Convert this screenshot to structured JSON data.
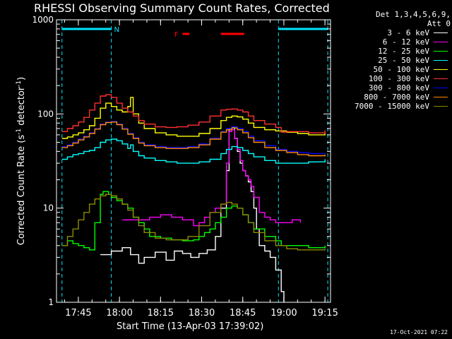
{
  "title": "RHESSI Observing Summary Count Rates, Corrected",
  "xlabel": "Start Time (13-Apr-03 17:39:02)",
  "timestamp": "17-Oct-2021 07:22",
  "legend_header": [
    "Det 1,3,4,5,6,9,",
    "Att 0"
  ],
  "flags": {
    "n_label": "N",
    "f_label": "F"
  },
  "colors": {
    "background": "#000000",
    "axes": "#ffffff",
    "night_bar": "#00e5ff",
    "flare_bar": "#ff0000"
  },
  "chart_data": {
    "type": "line",
    "title": "RHESSI Observing Summary Count Rates, Corrected",
    "xlabel": "Start Time (13-Apr-03 17:39:02)",
    "ylabel": "Corrected Count Rate (s⁻¹ detector⁻¹)",
    "ylabel_main": "Corrected Count Rate (s",
    "ylabel_sup1": "-1",
    "ylabel_mid": " detector",
    "ylabel_sup2": "-1",
    "ylabel_end": ")",
    "x_unit": "minutes after 17:39:02",
    "xlim": [
      -2,
      98
    ],
    "ylim": [
      1,
      1000
    ],
    "y_scale": "log",
    "grid": false,
    "legend_position": "right outside",
    "xticks": [
      {
        "label": "17:45",
        "x": 5.97
      },
      {
        "label": "18:00",
        "x": 20.97
      },
      {
        "label": "18:15",
        "x": 35.97
      },
      {
        "label": "18:30",
        "x": 50.97
      },
      {
        "label": "18:45",
        "x": 65.97
      },
      {
        "label": "19:00",
        "x": 80.97
      },
      {
        "label": "19:15",
        "x": 95.97
      }
    ],
    "yticks": [
      {
        "label": "1",
        "y": 1
      },
      {
        "label": "10",
        "y": 10
      },
      {
        "label": "100",
        "y": 100
      },
      {
        "label": "1000",
        "y": 1000
      }
    ],
    "night_intervals": [
      [
        0,
        18
      ],
      [
        79,
        97
      ]
    ],
    "flare_intervals": [
      [
        44,
        46.5
      ],
      [
        58,
        66.5
      ]
    ],
    "n_marker_x": 18.5,
    "f_marker_x": 41,
    "series": [
      {
        "name": "3 - 6 keV",
        "color": "#ffffff",
        "x": [
          0,
          5,
          10,
          14,
          18,
          22,
          25,
          28,
          30,
          34,
          38,
          41,
          44,
          47,
          50,
          53,
          56,
          58,
          60,
          61,
          62,
          63,
          64,
          65,
          66,
          67,
          68,
          69,
          70,
          71,
          72,
          74,
          76,
          78,
          80,
          81
        ],
        "y": [
          null,
          null,
          null,
          3.2,
          3.5,
          3.8,
          3.2,
          2.6,
          3.0,
          3.4,
          2.8,
          3.5,
          3.3,
          3.0,
          3.3,
          3.6,
          5.0,
          10,
          25,
          70,
          72,
          55,
          40,
          30,
          25,
          22,
          19,
          15,
          10,
          6,
          4,
          3.5,
          3.0,
          2.2,
          1.3,
          1.0
        ]
      },
      {
        "name": "6 - 12 keV",
        "color": "#ff00ff",
        "x": [
          14,
          18,
          22,
          25,
          28,
          32,
          36,
          40,
          44,
          48,
          50,
          52,
          54,
          56,
          58,
          60,
          61,
          62,
          63,
          64,
          65,
          66,
          67,
          68,
          69,
          70,
          72,
          74,
          76,
          78,
          80,
          84,
          87
        ],
        "y": [
          null,
          null,
          7.5,
          7.5,
          7.5,
          8.0,
          8.5,
          8.0,
          7.5,
          6.5,
          7.0,
          8.0,
          9.0,
          10,
          11,
          30,
          65,
          68,
          55,
          42,
          32,
          25,
          22,
          20,
          17,
          13,
          9.0,
          8.0,
          7.5,
          7.0,
          7.0,
          7.5,
          7.0
        ]
      },
      {
        "name": "12 - 25 keV",
        "color": "#00ff00",
        "x": [
          0,
          2,
          4,
          6,
          8,
          10,
          12,
          14,
          15,
          16,
          17,
          18,
          20,
          22,
          24,
          26,
          28,
          30,
          32,
          36,
          40,
          44,
          48,
          50,
          52,
          54,
          56,
          58,
          60,
          62,
          64,
          66,
          68,
          70,
          74,
          78,
          80,
          84,
          90,
          96
        ],
        "y": [
          4.0,
          4.5,
          4.2,
          4.0,
          3.8,
          3.6,
          7.0,
          14,
          15,
          15,
          14,
          13,
          12,
          11,
          10,
          8.0,
          7.0,
          6.0,
          5.0,
          4.8,
          4.6,
          4.5,
          4.6,
          5.0,
          5.5,
          6.0,
          7.0,
          8.0,
          10,
          10.5,
          10,
          8.5,
          7.0,
          6.0,
          5.0,
          4.5,
          4.0,
          4.0,
          3.8,
          4.0
        ]
      },
      {
        "name": "25 - 50 keV",
        "color": "#00ffff",
        "x": [
          0,
          2,
          4,
          6,
          8,
          10,
          12,
          14,
          16,
          18,
          20,
          22,
          24,
          25,
          26,
          28,
          30,
          34,
          38,
          42,
          46,
          50,
          54,
          58,
          60,
          62,
          64,
          66,
          68,
          70,
          74,
          78,
          82,
          86,
          90,
          96
        ],
        "y": [
          33,
          35,
          37,
          38,
          40,
          41,
          44,
          50,
          53,
          54,
          52,
          48,
          43,
          47,
          40,
          36,
          34,
          32,
          31,
          30,
          30,
          31,
          33,
          38,
          42,
          45,
          44,
          41,
          38,
          35,
          32,
          30,
          30,
          30,
          31,
          33
        ]
      },
      {
        "name": "50 - 100 keV",
        "color": "#ffff00",
        "x": [
          0,
          2,
          4,
          6,
          8,
          10,
          12,
          14,
          16,
          18,
          20,
          22,
          24,
          25,
          26,
          28,
          30,
          34,
          38,
          42,
          46,
          50,
          54,
          58,
          60,
          62,
          64,
          66,
          68,
          70,
          74,
          78,
          82,
          86,
          90,
          96
        ],
        "y": [
          55,
          57,
          60,
          63,
          68,
          75,
          90,
          115,
          130,
          120,
          110,
          105,
          120,
          150,
          100,
          80,
          70,
          63,
          60,
          58,
          58,
          62,
          70,
          85,
          92,
          95,
          93,
          88,
          80,
          72,
          68,
          66,
          64,
          62,
          60,
          62
        ]
      },
      {
        "name": "100 - 300 keV",
        "color": "#ff3030",
        "x": [
          0,
          2,
          4,
          6,
          8,
          10,
          12,
          14,
          16,
          18,
          20,
          22,
          24,
          26,
          28,
          30,
          34,
          38,
          42,
          46,
          50,
          54,
          58,
          60,
          62,
          64,
          66,
          68,
          70,
          74,
          78,
          80,
          82,
          86,
          90,
          96
        ],
        "y": [
          65,
          70,
          75,
          82,
          92,
          110,
          130,
          155,
          160,
          150,
          130,
          115,
          105,
          95,
          85,
          78,
          73,
          72,
          73,
          76,
          82,
          95,
          110,
          112,
          113,
          110,
          105,
          95,
          85,
          78,
          72,
          64,
          65,
          65,
          63,
          67
        ]
      },
      {
        "name": "300 - 800 keV",
        "color": "#0000ff",
        "x": [
          0,
          2,
          4,
          6,
          8,
          10,
          12,
          14,
          16,
          18,
          20,
          22,
          24,
          26,
          28,
          30,
          34,
          38,
          42,
          46,
          50,
          54,
          58,
          60,
          62,
          64,
          66,
          68,
          70,
          74,
          78,
          82,
          86,
          90,
          96
        ],
        "y": [
          45,
          47,
          50,
          54,
          58,
          63,
          70,
          78,
          82,
          83,
          78,
          70,
          62,
          56,
          50,
          47,
          45,
          44,
          44,
          45,
          48,
          55,
          65,
          70,
          73,
          70,
          65,
          58,
          52,
          46,
          42,
          40,
          39,
          38,
          38
        ]
      },
      {
        "name": "800 - 7000 keV",
        "color": "#ff8c00",
        "x": [
          0,
          2,
          4,
          6,
          8,
          10,
          12,
          14,
          16,
          18,
          20,
          22,
          24,
          26,
          28,
          30,
          34,
          38,
          42,
          46,
          50,
          54,
          58,
          60,
          62,
          64,
          66,
          68,
          70,
          74,
          78,
          82,
          86,
          90,
          96
        ],
        "y": [
          44,
          46,
          49,
          53,
          57,
          62,
          69,
          77,
          81,
          82,
          77,
          69,
          61,
          55,
          49,
          46,
          44,
          43,
          43,
          44,
          47,
          54,
          64,
          68,
          71,
          68,
          63,
          56,
          50,
          44,
          41,
          39,
          37,
          36,
          37
        ]
      },
      {
        "name": "7000 - 15000 keV",
        "color": "#8b8b00",
        "x": [
          0,
          2,
          4,
          6,
          8,
          10,
          12,
          14,
          16,
          18,
          20,
          22,
          24,
          26,
          28,
          30,
          34,
          38,
          42,
          46,
          50,
          54,
          58,
          60,
          62,
          64,
          66,
          68,
          70,
          74,
          78,
          82,
          86,
          90,
          96
        ],
        "y": [
          4.0,
          5.0,
          6.0,
          7.5,
          9.0,
          11,
          12.5,
          13.5,
          14,
          13.5,
          12.5,
          11,
          9.5,
          8.0,
          6.5,
          5.5,
          4.8,
          4.6,
          4.6,
          5.0,
          6.5,
          9.0,
          11,
          11.5,
          11,
          10,
          8.5,
          7.0,
          5.5,
          4.5,
          4.0,
          3.7,
          3.6,
          3.6,
          3.7
        ]
      }
    ]
  }
}
